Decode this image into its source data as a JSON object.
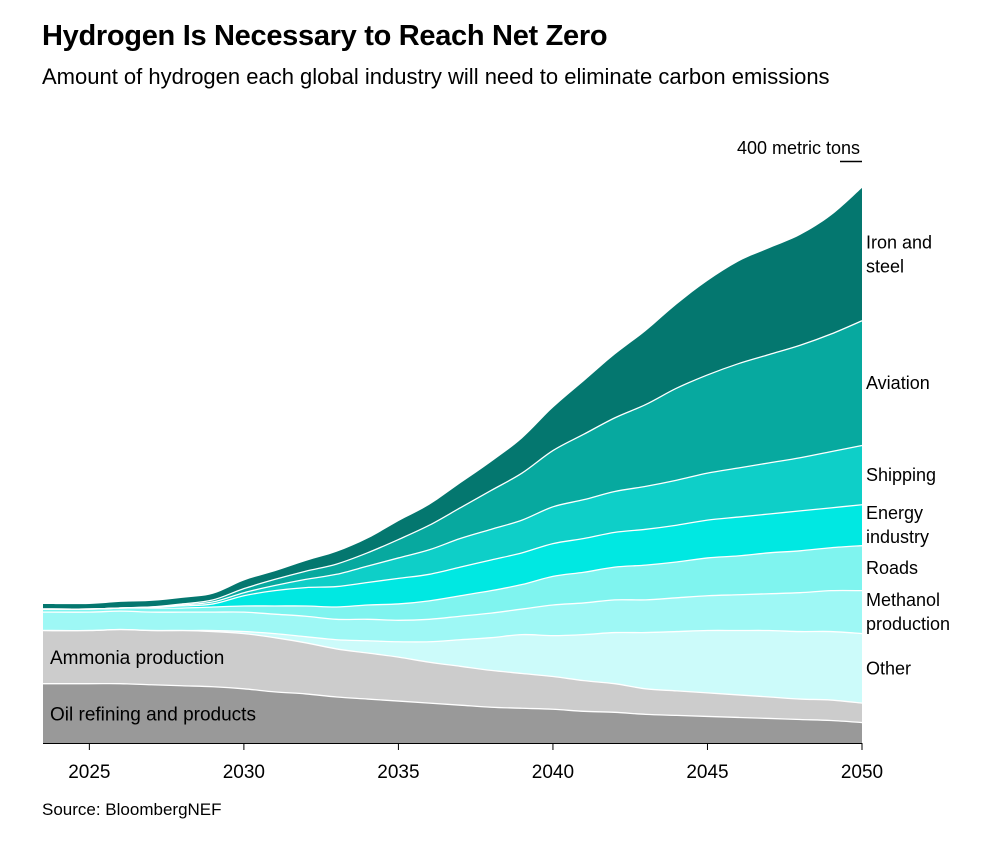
{
  "header": {
    "title": "Hydrogen Is Necessary to Reach Net Zero",
    "subtitle": "Amount of hydrogen each global industry will need to eliminate carbon emissions"
  },
  "footer": {
    "source": "Source: BloombergNEF"
  },
  "chart_data": {
    "type": "area",
    "stacked": true,
    "scale_label": "400 metric tons",
    "scale_value": 40,
    "x": [
      2023.5,
      2025,
      2026,
      2027,
      2028,
      2029,
      2030,
      2031,
      2032,
      2033,
      2034,
      2035,
      2036,
      2037,
      2038,
      2039,
      2040,
      2041,
      2042,
      2043,
      2044,
      2045,
      2046,
      2047,
      2048,
      2049,
      2050
    ],
    "xticks": [
      "2025",
      "2030",
      "2035",
      "2040",
      "2045",
      "2050"
    ],
    "xlim": [
      2023.5,
      2050
    ],
    "ylim": [
      0,
      580
    ],
    "series": [
      {
        "name": "Oil refining and products",
        "label_position": "inside",
        "color": "#999999",
        "values": [
          58,
          58,
          58,
          57,
          56,
          55,
          53,
          50,
          48,
          45,
          43,
          41,
          39,
          37,
          35,
          34,
          33,
          31,
          30,
          28,
          27,
          26,
          25,
          24,
          23,
          22,
          20
        ]
      },
      {
        "name": "Ammonia production",
        "label_position": "inside",
        "color": "#cccccc",
        "values": [
          52,
          52,
          53,
          53,
          54,
          54,
          54,
          53,
          50,
          47,
          45,
          43,
          40,
          38,
          36,
          34,
          32,
          30,
          28,
          25,
          24,
          23,
          22,
          21,
          20,
          20,
          19
        ]
      },
      {
        "name": "Other",
        "label_lines": [
          "Other"
        ],
        "color": "#ccfbfa",
        "values": [
          0,
          0,
          0,
          0,
          0,
          1,
          2,
          4,
          6,
          9,
          12,
          15,
          20,
          26,
          32,
          38,
          40,
          45,
          50,
          55,
          58,
          61,
          63,
          65,
          66,
          67,
          68
        ]
      },
      {
        "name": "Methanol production",
        "label_lines": [
          "Methanol",
          "production"
        ],
        "color": "#9ef8f5",
        "values": [
          18,
          18,
          18,
          18,
          18,
          18,
          19,
          19,
          20,
          20,
          21,
          21,
          22,
          23,
          24,
          25,
          30,
          31,
          32,
          32,
          33,
          34,
          35,
          36,
          38,
          40,
          42
        ]
      },
      {
        "name": "Roads",
        "label_lines": [
          "Roads"
        ],
        "color": "#7ff4ef",
        "values": [
          3,
          3,
          3,
          4,
          4,
          5,
          6,
          8,
          10,
          12,
          14,
          16,
          18,
          20,
          22,
          24,
          28,
          30,
          32,
          34,
          35,
          37,
          38,
          40,
          41,
          42,
          44
        ]
      },
      {
        "name": "Energy industry",
        "label_lines": [
          "Energy",
          "industry"
        ],
        "color": "#00e8e2",
        "values": [
          0,
          0,
          0,
          1,
          2,
          3,
          10,
          15,
          18,
          20,
          22,
          25,
          26,
          28,
          30,
          31,
          32,
          33,
          34,
          35,
          36,
          37,
          38,
          38,
          39,
          39,
          40
        ]
      },
      {
        "name": "Shipping",
        "label_lines": [
          "Shipping"
        ],
        "color": "#0ecfc8",
        "values": [
          0,
          0,
          0,
          0,
          1,
          2,
          3,
          5,
          8,
          12,
          16,
          20,
          24,
          28,
          30,
          32,
          36,
          38,
          40,
          42,
          44,
          46,
          48,
          50,
          52,
          55,
          58
        ]
      },
      {
        "name": "Aviation",
        "label_lines": [
          "Aviation"
        ],
        "color": "#07a99f",
        "values": [
          0,
          0,
          0,
          0,
          1,
          2,
          4,
          6,
          8,
          10,
          13,
          18,
          24,
          30,
          38,
          46,
          55,
          64,
          72,
          80,
          90,
          96,
          102,
          106,
          110,
          115,
          122
        ]
      },
      {
        "name": "Iron and steel",
        "label_lines": [
          "Iron and",
          "steel"
        ],
        "color": "#04776f",
        "values": [
          5,
          5,
          6,
          6,
          6,
          6,
          8,
          8,
          10,
          12,
          14,
          18,
          20,
          24,
          28,
          34,
          42,
          52,
          62,
          72,
          82,
          92,
          100,
          104,
          108,
          116,
          130
        ]
      }
    ]
  }
}
